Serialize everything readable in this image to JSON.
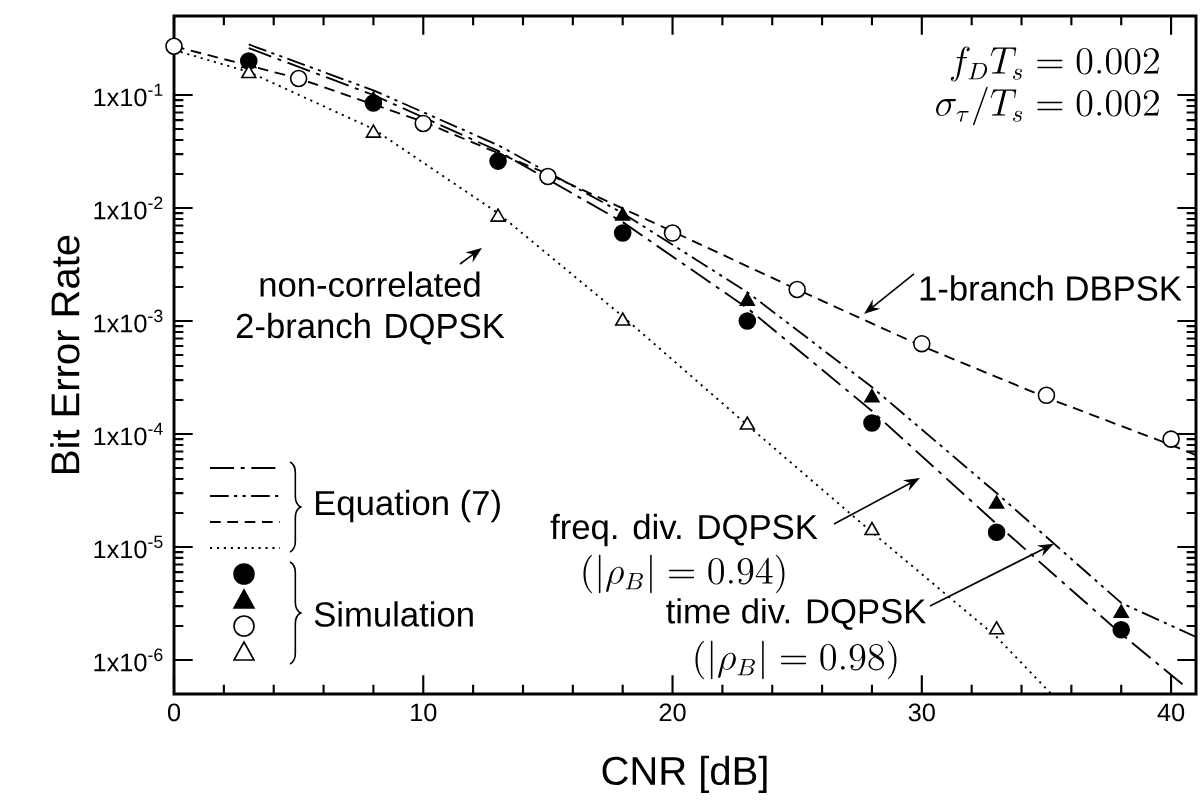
{
  "chart_data": {
    "type": "line",
    "xlabel": "CNR [dB]",
    "ylabel": "Bit Error Rate",
    "log": "y",
    "xlim": [
      0,
      41
    ],
    "ylim": [
      5e-07,
      0.5
    ],
    "xticks": [
      0,
      10,
      20,
      30,
      40
    ],
    "yticks": [
      {
        "value": 1e-06,
        "label": "1x10$^{-6}$"
      },
      {
        "value": 1e-05,
        "label": "1x10$^{-5}$"
      },
      {
        "value": 0.0001,
        "label": "1x10$^{-4}$"
      },
      {
        "value": 0.001,
        "label": "1x10$^{-3}$"
      },
      {
        "value": 0.01,
        "label": "1x10$^{-2}$"
      },
      {
        "value": 0.1,
        "label": "1x10$^{-1}$"
      }
    ],
    "series": [
      {
        "type": "line",
        "color": "#000000",
        "line_style": "dashdotted",
        "marker": "none",
        "x": [
          3,
          8,
          13,
          18,
          23,
          28,
          33,
          38,
          40.5
        ],
        "values": [
          0.26,
          0.1,
          0.032,
          0.0075,
          0.0013,
          0.00016,
          1.6e-05,
          1.7e-06,
          6e-07
        ]
      },
      {
        "type": "line",
        "color": "#000000",
        "line_style": "dashdotdotted",
        "marker": "none",
        "x": [
          3,
          8,
          13,
          18,
          23,
          28,
          33,
          38,
          41
        ],
        "values": [
          0.28,
          0.11,
          0.036,
          0.009,
          0.0018,
          0.00026,
          3e-05,
          3.2e-06,
          1.6e-06
        ]
      },
      {
        "type": "line",
        "color": "#000000",
        "line_style": "dashed",
        "marker": "none",
        "x": [
          0,
          5,
          10,
          15,
          20,
          25,
          30,
          35,
          40,
          41
        ],
        "values": [
          0.27,
          0.14,
          0.058,
          0.02,
          0.0062,
          0.0019,
          0.0006,
          0.00021,
          8e-05,
          6.5e-05
        ]
      },
      {
        "type": "line",
        "color": "#000000",
        "line_style": "dotted",
        "marker": "none",
        "x": [
          0,
          3,
          8,
          13,
          18,
          23,
          28,
          33,
          35.2
        ],
        "values": [
          0.25,
          0.16,
          0.05,
          0.009,
          0.0011,
          0.00012,
          1.35e-05,
          1.6e-06,
          5e-07
        ]
      },
      {
        "type": "scatter",
        "color": "#000000",
        "marker": "circle",
        "x": [
          3,
          8,
          13,
          18,
          23,
          28,
          33,
          38
        ],
        "values": [
          0.2,
          0.085,
          0.026,
          0.006,
          0.001,
          0.000125,
          1.35e-05,
          1.85e-06
        ]
      },
      {
        "type": "scatter",
        "color": "#000000",
        "marker": "triangle",
        "x": [
          3,
          8,
          13,
          18,
          23,
          28,
          33,
          38
        ],
        "values": [
          0.19,
          0.09,
          0.027,
          0.0085,
          0.0015,
          0.00021,
          2.4e-05,
          2.6e-06
        ]
      },
      {
        "type": "scatter",
        "color": "#ffffff",
        "marker": "circle",
        "x": [
          0,
          5,
          10,
          15,
          20,
          25,
          30,
          35,
          40
        ],
        "values": [
          0.27,
          0.14,
          0.056,
          0.019,
          0.006,
          0.0019,
          0.00063,
          0.00022,
          9e-05
        ]
      },
      {
        "type": "scatter",
        "color": "#ffffff",
        "marker": "triangle",
        "x": [
          3,
          8,
          13,
          18,
          23,
          28,
          33
        ],
        "values": [
          0.155,
          0.046,
          0.0083,
          0.001,
          0.00012,
          1.4e-05,
          1.85e-06
        ]
      }
    ],
    "annotations": [
      "non-correlated 2-branch DQPSK",
      "1-branch DBPSK",
      "freq. div. DQPSK",
      "(|\\rho_B| = 0.94)",
      {
        "text": "time div. DQPSK",
        "x": 35.3,
        "y": 1.07e-05
      },
      "(|\\rho_B| = 0.98)",
      "f_D T_s = 0.002",
      "\\sigma_\\tau / T_s = 0.002",
      "Equation (7)",
      "Simulation"
    ]
  }
}
